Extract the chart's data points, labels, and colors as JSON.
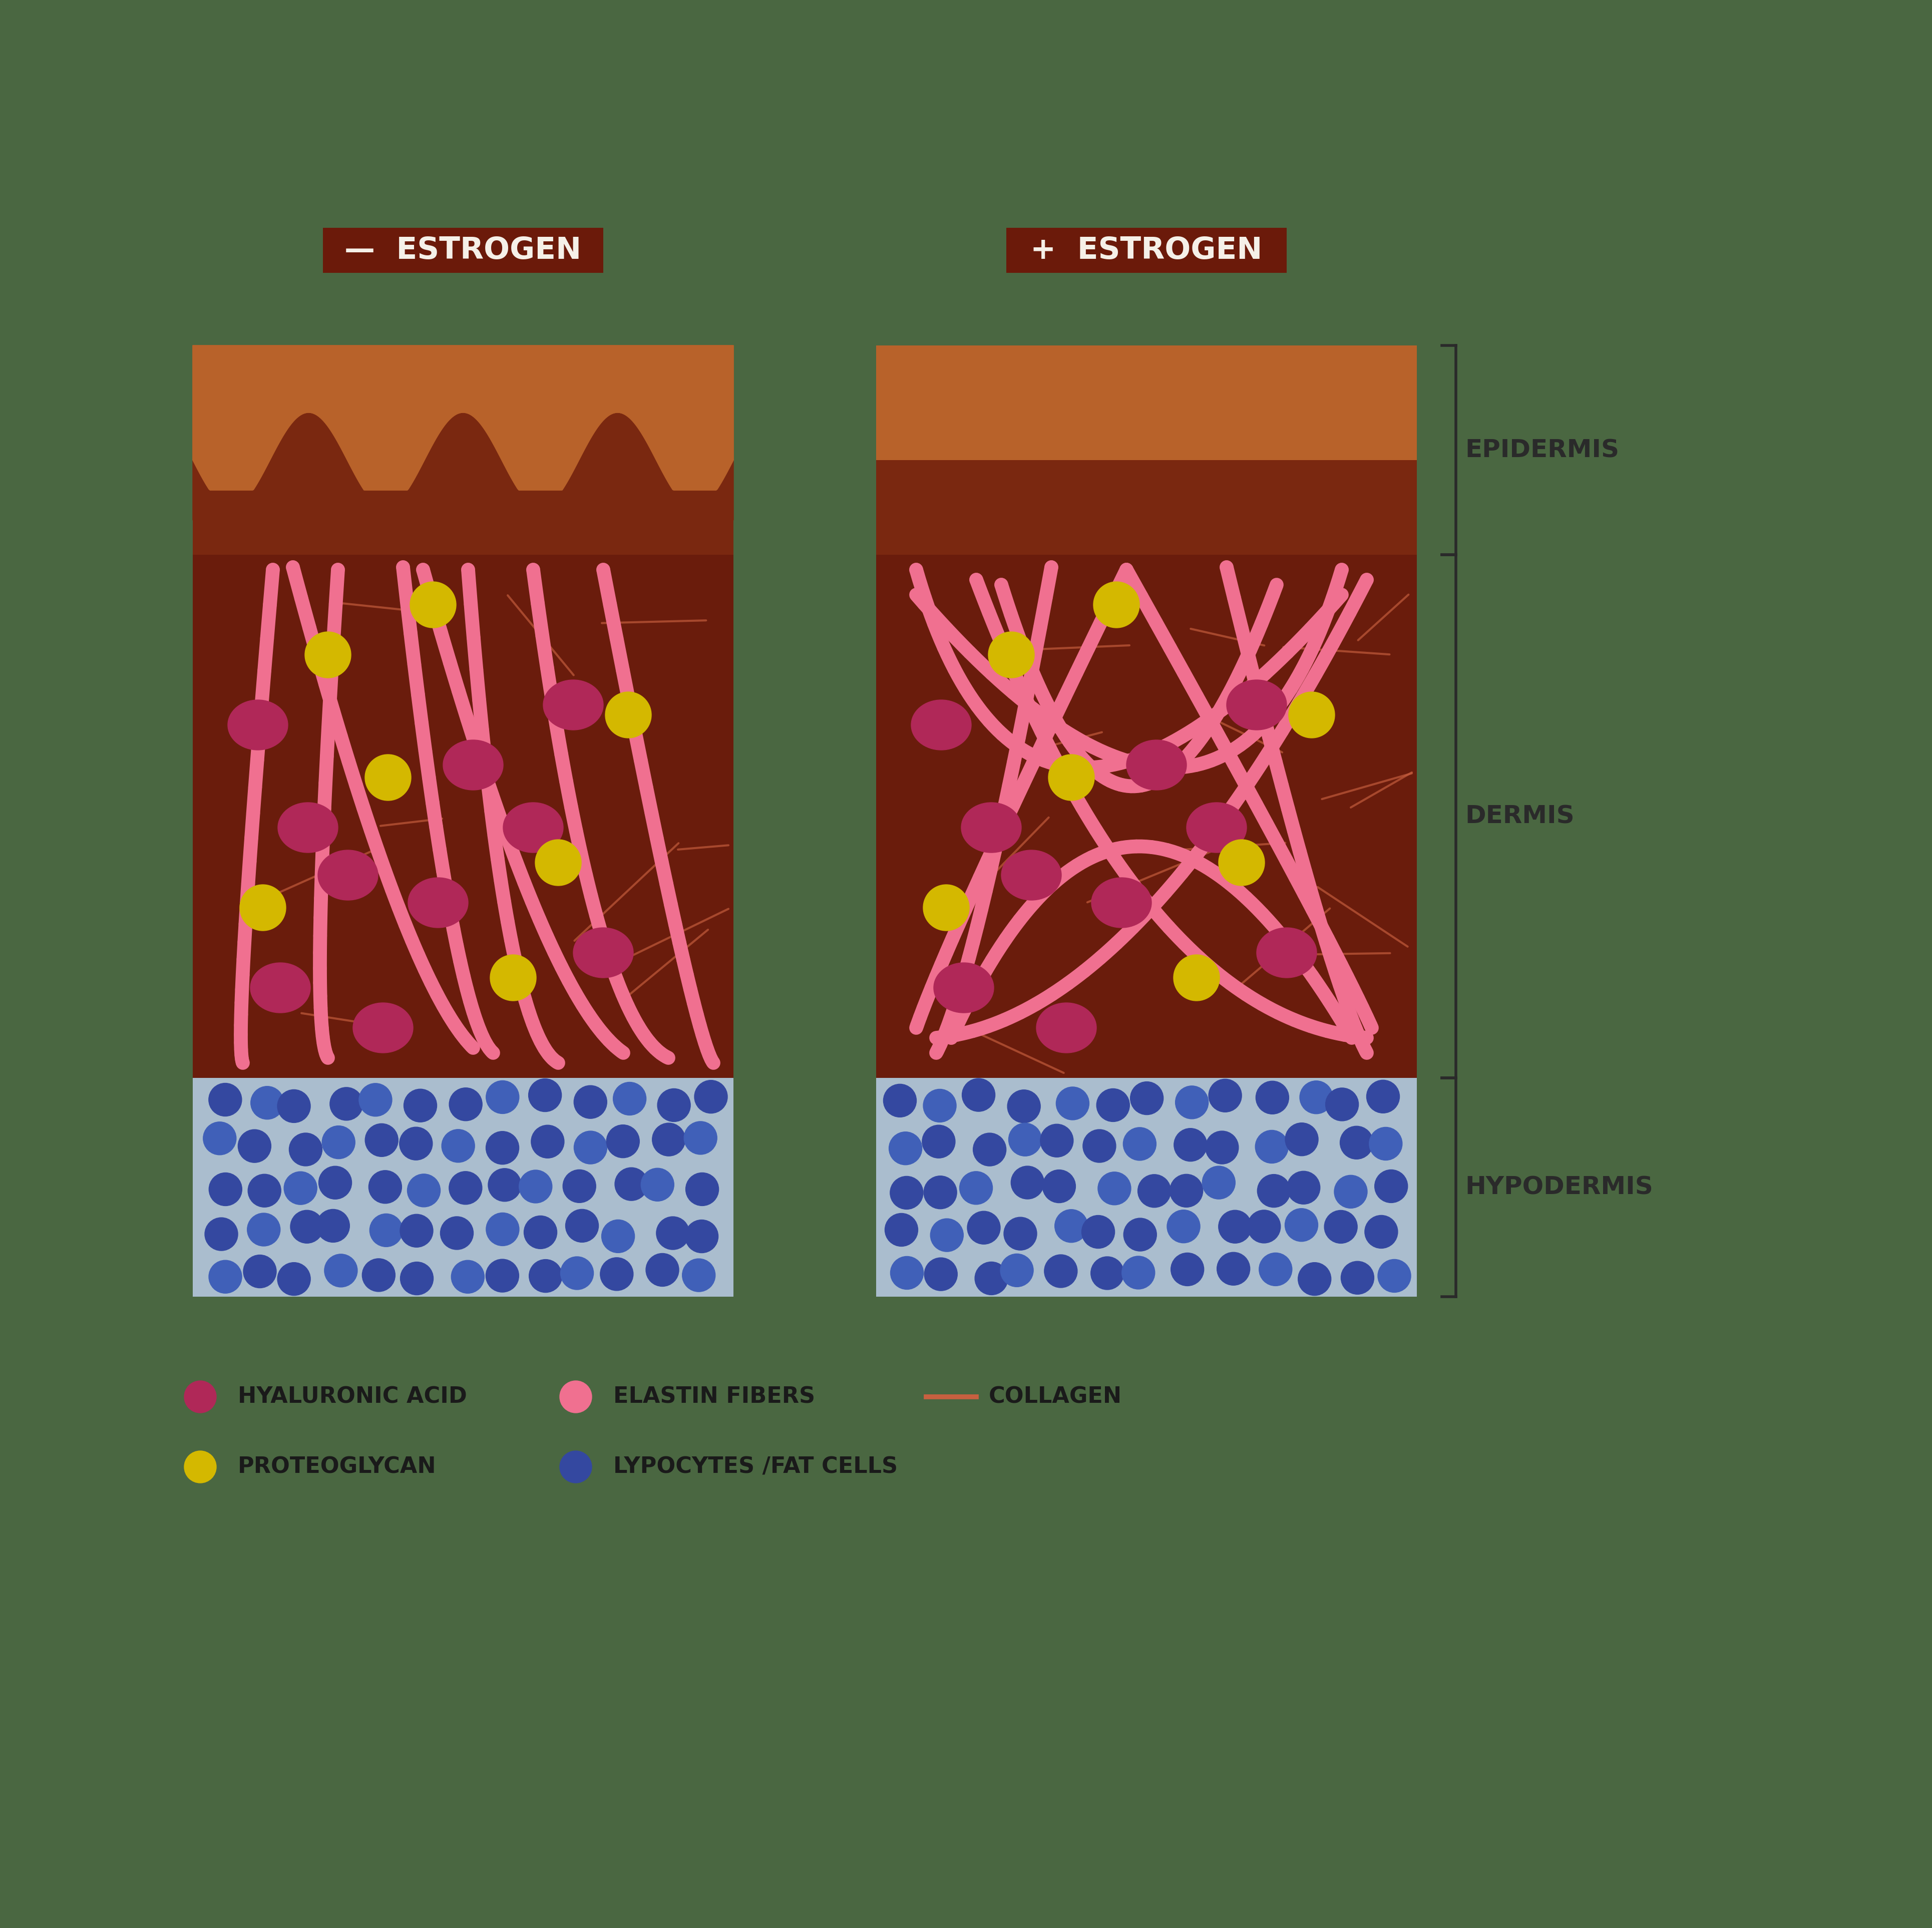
{
  "bg_color": "#4a6741",
  "label_bg": "#6b1a0a",
  "label_text_color": "#f5f0e8",
  "label_minus": "—  ESTROGEN",
  "label_plus": "+  ESTROGEN",
  "skin_top_color": "#b8622a",
  "skin_top_color2": "#c87840",
  "epidermis_color": "#7a2810",
  "dermis_color": "#6a1c0c",
  "hypodermis_color": "#aabdce",
  "pink_fiber_color": "#f07090",
  "hyaluronic_color": "#b02858",
  "proteoglycan_color": "#d4b800",
  "fat_cell_color": "#3448a0",
  "fat_cell_color2": "#4060b8",
  "collagen_color": "#c86040",
  "text_color": "#1a1a1a",
  "bracket_color": "#2a2a2a"
}
